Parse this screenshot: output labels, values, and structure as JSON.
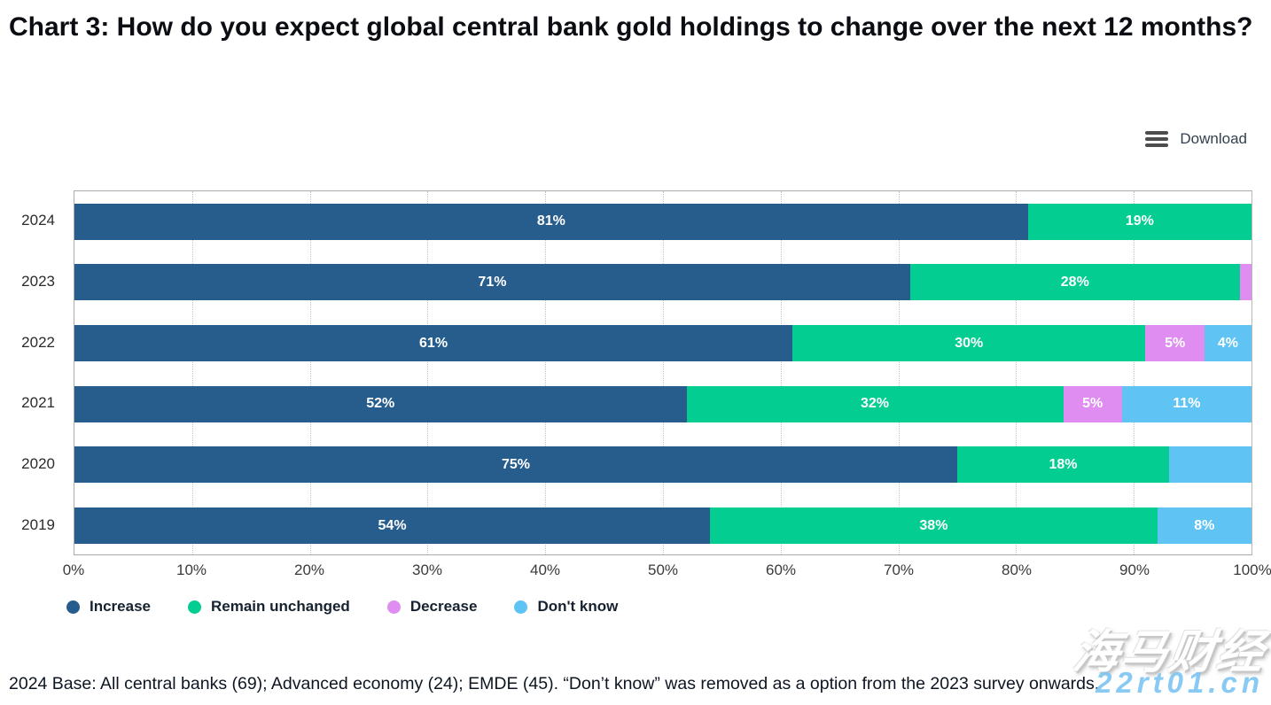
{
  "title": "Chart 3: How do you expect global central bank gold holdings to change over the next 12 months?",
  "toolbar": {
    "download_label": "Download"
  },
  "chart_data": {
    "type": "bar",
    "orientation": "horizontal",
    "stacked": true,
    "title": "Chart 3: How do you expect global central bank gold holdings to change over the next 12 months?",
    "categories": [
      "2024",
      "2023",
      "2022",
      "2021",
      "2020",
      "2019"
    ],
    "series": [
      {
        "name": "Increase",
        "color": "#265d8c",
        "values": [
          81,
          71,
          61,
          52,
          75,
          54
        ]
      },
      {
        "name": "Remain unchanged",
        "color": "#04cd92",
        "values": [
          19,
          28,
          30,
          32,
          18,
          38
        ]
      },
      {
        "name": "Decrease",
        "color": "#e08df2",
        "values": [
          0,
          1,
          5,
          5,
          0,
          0
        ]
      },
      {
        "name": "Don't know",
        "color": "#5fc3f4",
        "values": [
          0,
          0,
          4,
          11,
          7,
          8
        ]
      }
    ],
    "data_labels": [
      [
        "81%",
        "19%",
        "",
        ""
      ],
      [
        "71%",
        "28%",
        "",
        ""
      ],
      [
        "61%",
        "30%",
        "5%",
        "4%"
      ],
      [
        "52%",
        "32%",
        "5%",
        "11%"
      ],
      [
        "75%",
        "18%",
        "",
        ""
      ],
      [
        "54%",
        "38%",
        "",
        "8%"
      ]
    ],
    "x_ticks": [
      "0%",
      "10%",
      "20%",
      "30%",
      "40%",
      "50%",
      "60%",
      "70%",
      "80%",
      "90%",
      "100%"
    ],
    "xlim": [
      0,
      100
    ],
    "xlabel": "",
    "ylabel": "",
    "grid": "vertical-dotted",
    "legend_position": "bottom"
  },
  "footnote": "2024 Base: All central banks (69); Advanced economy (24); EMDE (45). “Don’t know” was removed as a option from the 2023 survey onwards.",
  "watermark": {
    "line1": "海马财经",
    "line2": "22rt01.cn"
  }
}
